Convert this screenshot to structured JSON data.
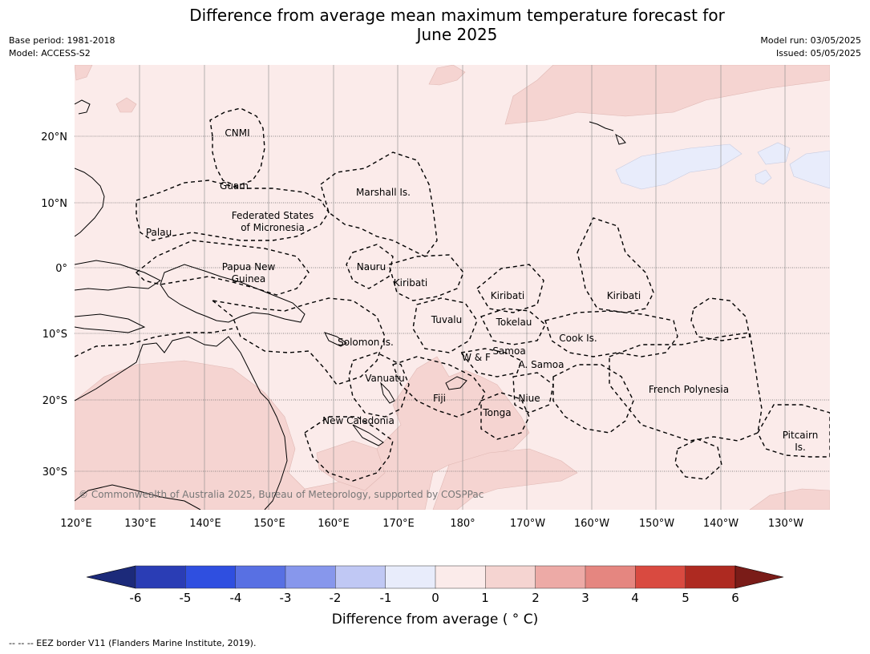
{
  "title": "Difference from average mean maximum temperature forecast for June 2025",
  "title_line1": "Difference from average mean maximum temperature forecast for",
  "title_line2": "June 2025",
  "meta_left": {
    "base_period": "Base period: 1981-2018",
    "model": "Model: ACCESS-S2"
  },
  "meta_right": {
    "model_run": "Model run: 03/05/2025",
    "issued": "Issued: 05/05/2025"
  },
  "map": {
    "lon_labels": [
      "120°E",
      "130°E",
      "140°E",
      "150°E",
      "160°E",
      "170°E",
      "180°",
      "170°W",
      "160°W",
      "150°W",
      "140°W",
      "130°W"
    ],
    "lat_labels": [
      "20°N",
      "10°N",
      "0°",
      "10°S",
      "20°S",
      "30°S"
    ],
    "copyright": "© Commonwealth of Australia 2025, Bureau of Meteorology, supported by COSPPac",
    "region_labels": [
      {
        "text": "CNMI"
      },
      {
        "text": "Guam"
      },
      {
        "text": "Marshall Is."
      },
      {
        "text": "Federated States"
      },
      {
        "text": "of Micronesia"
      },
      {
        "text": "Palau"
      },
      {
        "text": "Papua New"
      },
      {
        "text": "Guinea"
      },
      {
        "text": "Nauru"
      },
      {
        "text": "Kiribati"
      },
      {
        "text": "Kiribati"
      },
      {
        "text": "Kiribati"
      },
      {
        "text": "Tuvalu"
      },
      {
        "text": "Tokelau"
      },
      {
        "text": "Cook Is."
      },
      {
        "text": "Solomon Is."
      },
      {
        "text": "Samoa"
      },
      {
        "text": "W & F"
      },
      {
        "text": "A. Samoa"
      },
      {
        "text": "Vanuatu"
      },
      {
        "text": "Fiji"
      },
      {
        "text": "Niue"
      },
      {
        "text": "Tonga"
      },
      {
        "text": "French Polynesia"
      },
      {
        "text": "New Caledonia"
      },
      {
        "text": "Pitcairn"
      },
      {
        "text": "Is."
      }
    ],
    "colors": {
      "ocean_anomaly_0_1": "#fbebea",
      "anomaly_1_2": "#f5d4d1",
      "anomaly_neg1_0": "#e8ecfb"
    }
  },
  "colorbar": {
    "label": "Difference from average ( ° C)",
    "ticks": [
      "-6",
      "-5",
      "-4",
      "-3",
      "-2",
      "-1",
      "0",
      "1",
      "2",
      "3",
      "4",
      "5",
      "6"
    ],
    "colors": [
      "#1c2a7a",
      "#2a3db5",
      "#2f4fe0",
      "#5870e3",
      "#8797ec",
      "#c0c8f4",
      "#e8ecfb",
      "#fbebea",
      "#f5d4d1",
      "#edaaa6",
      "#e58680",
      "#d94a40",
      "#ae2a21",
      "#7a1c18"
    ]
  },
  "footnote": "--  --  -- EEZ border V11 (Flanders Marine Institute, 2019)."
}
